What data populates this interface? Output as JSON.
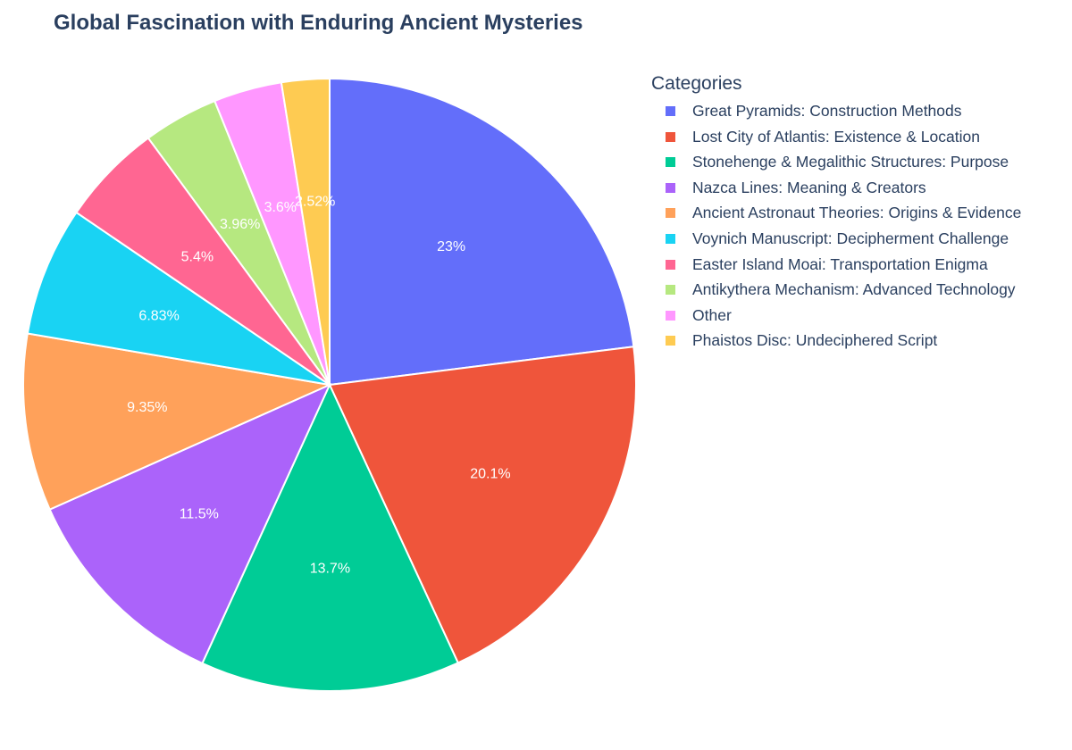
{
  "chart_data": {
    "type": "pie",
    "title": "Global Fascination with Enduring Ancient Mysteries",
    "legend_title": "Categories",
    "legend_placement": "right",
    "sort_order": "descending, clockwise from top",
    "slices": [
      {
        "name": "Great Pyramids: Construction Methods",
        "percent": 23,
        "label": "23%",
        "color": "#636efa"
      },
      {
        "name": "Lost City of Atlantis: Existence & Location",
        "percent": 20.1,
        "label": "20.1%",
        "color": "#ef553b"
      },
      {
        "name": "Stonehenge & Megalithic Structures: Purpose",
        "percent": 13.7,
        "label": "13.7%",
        "color": "#00cc96"
      },
      {
        "name": "Nazca Lines: Meaning & Creators",
        "percent": 11.5,
        "label": "11.5%",
        "color": "#ab63fa"
      },
      {
        "name": "Ancient Astronaut Theories: Origins & Evidence",
        "percent": 9.35,
        "label": "9.35%",
        "color": "#ffa15a"
      },
      {
        "name": "Voynich Manuscript: Decipherment Challenge",
        "percent": 6.83,
        "label": "6.83%",
        "color": "#19d3f3"
      },
      {
        "name": "Easter Island Moai: Transportation Enigma",
        "percent": 5.4,
        "label": "5.4%",
        "color": "#ff6692"
      },
      {
        "name": "Antikythera Mechanism: Advanced Technology",
        "percent": 3.96,
        "label": "3.96%",
        "color": "#b6e880"
      },
      {
        "name": "Other",
        "percent": 3.6,
        "label": "3.6%",
        "color": "#ff97ff"
      },
      {
        "name": "Phaistos Disc: Undeciphered Script",
        "percent": 2.52,
        "label": "2.52%",
        "color": "#fecb52"
      }
    ]
  }
}
